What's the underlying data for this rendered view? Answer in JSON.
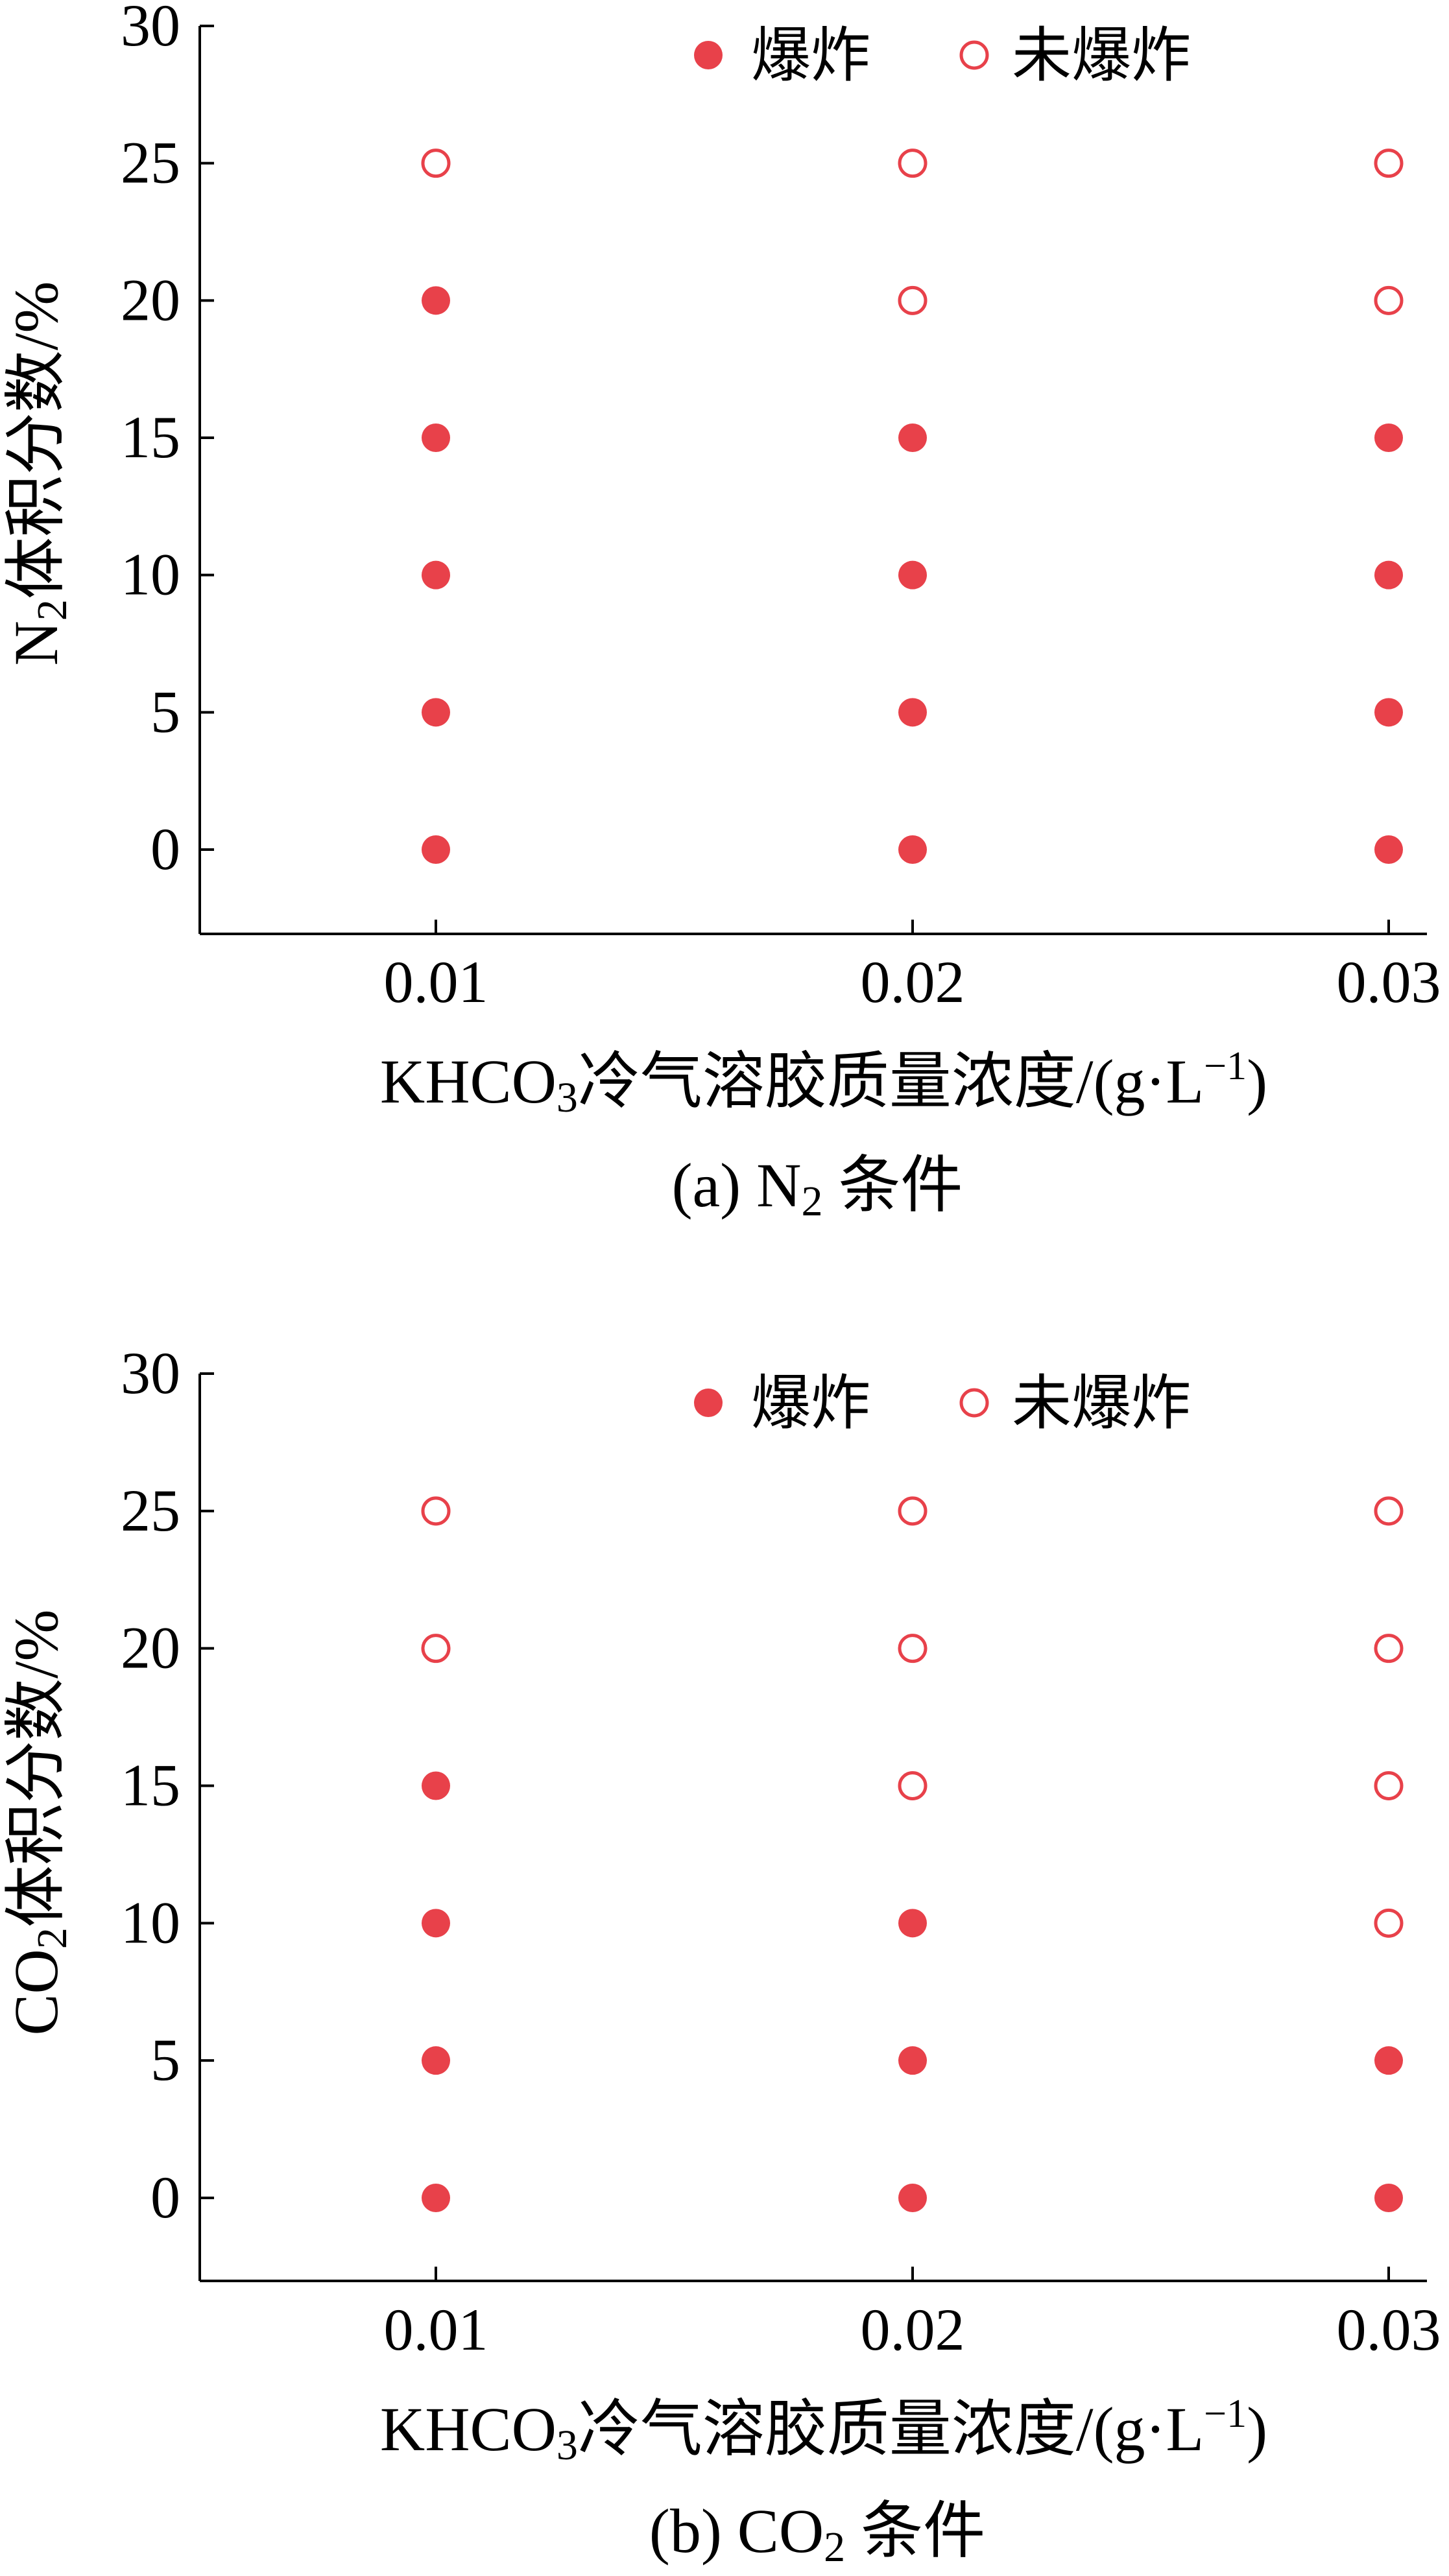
{
  "chart_data": [
    {
      "type": "scatter",
      "panel_label": "(a)",
      "caption": "N₂条件",
      "caption_text": "条件",
      "gas": "N",
      "gas_sub": "2",
      "xlabel": "KHCO₃冷气溶胶质量浓度/(g·L⁻¹)",
      "ylabel": "N₂体积分数/%",
      "ylabel_pre": "N",
      "ylabel_sub": "2",
      "ylabel_post": "体积分数/%",
      "x_categories": [
        "0.01",
        "0.02",
        "0.03"
      ],
      "yticks": [
        0,
        5,
        10,
        15,
        20,
        25,
        30
      ],
      "ylim": [
        -3,
        30
      ],
      "legend": {
        "exploded": "爆炸",
        "not_exploded": "未爆炸",
        "placement": "top-center"
      },
      "points": [
        {
          "x": "0.01",
          "y": 0,
          "status": "exploded"
        },
        {
          "x": "0.01",
          "y": 5,
          "status": "exploded"
        },
        {
          "x": "0.01",
          "y": 10,
          "status": "exploded"
        },
        {
          "x": "0.01",
          "y": 15,
          "status": "exploded"
        },
        {
          "x": "0.01",
          "y": 20,
          "status": "exploded"
        },
        {
          "x": "0.01",
          "y": 25,
          "status": "not_exploded"
        },
        {
          "x": "0.02",
          "y": 0,
          "status": "exploded"
        },
        {
          "x": "0.02",
          "y": 5,
          "status": "exploded"
        },
        {
          "x": "0.02",
          "y": 10,
          "status": "exploded"
        },
        {
          "x": "0.02",
          "y": 15,
          "status": "exploded"
        },
        {
          "x": "0.02",
          "y": 20,
          "status": "not_exploded"
        },
        {
          "x": "0.02",
          "y": 25,
          "status": "not_exploded"
        },
        {
          "x": "0.03",
          "y": 0,
          "status": "exploded"
        },
        {
          "x": "0.03",
          "y": 5,
          "status": "exploded"
        },
        {
          "x": "0.03",
          "y": 10,
          "status": "exploded"
        },
        {
          "x": "0.03",
          "y": 15,
          "status": "exploded"
        },
        {
          "x": "0.03",
          "y": 20,
          "status": "not_exploded"
        },
        {
          "x": "0.03",
          "y": 25,
          "status": "not_exploded"
        }
      ]
    },
    {
      "type": "scatter",
      "panel_label": "(b)",
      "caption": "CO₂条件",
      "caption_text": "条件",
      "gas": "CO",
      "gas_sub": "2",
      "xlabel": "KHCO₃冷气溶胶质量浓度/(g·L⁻¹)",
      "ylabel": "CO₂体积分数/%",
      "ylabel_pre": "CO",
      "ylabel_sub": "2",
      "ylabel_post": "体积分数/%",
      "x_categories": [
        "0.01",
        "0.02",
        "0.03"
      ],
      "yticks": [
        0,
        5,
        10,
        15,
        20,
        25,
        30
      ],
      "ylim": [
        -3,
        30
      ],
      "legend": {
        "exploded": "爆炸",
        "not_exploded": "未爆炸",
        "placement": "top-center"
      },
      "points": [
        {
          "x": "0.01",
          "y": 0,
          "status": "exploded"
        },
        {
          "x": "0.01",
          "y": 5,
          "status": "exploded"
        },
        {
          "x": "0.01",
          "y": 10,
          "status": "exploded"
        },
        {
          "x": "0.01",
          "y": 15,
          "status": "exploded"
        },
        {
          "x": "0.01",
          "y": 20,
          "status": "not_exploded"
        },
        {
          "x": "0.01",
          "y": 25,
          "status": "not_exploded"
        },
        {
          "x": "0.02",
          "y": 0,
          "status": "exploded"
        },
        {
          "x": "0.02",
          "y": 5,
          "status": "exploded"
        },
        {
          "x": "0.02",
          "y": 10,
          "status": "exploded"
        },
        {
          "x": "0.02",
          "y": 15,
          "status": "not_exploded"
        },
        {
          "x": "0.02",
          "y": 20,
          "status": "not_exploded"
        },
        {
          "x": "0.02",
          "y": 25,
          "status": "not_exploded"
        },
        {
          "x": "0.03",
          "y": 0,
          "status": "exploded"
        },
        {
          "x": "0.03",
          "y": 5,
          "status": "exploded"
        },
        {
          "x": "0.03",
          "y": 10,
          "status": "not_exploded"
        },
        {
          "x": "0.03",
          "y": 15,
          "status": "not_exploded"
        },
        {
          "x": "0.03",
          "y": 20,
          "status": "not_exploded"
        },
        {
          "x": "0.03",
          "y": 25,
          "status": "not_exploded"
        }
      ]
    }
  ],
  "xlabel_parts": {
    "pre": "KHCO",
    "sub": "3",
    "mid": "冷气溶胶质量浓度/(g·L",
    "sup": "−1",
    "post": ")"
  },
  "colors": {
    "marker": "#e8414a",
    "axis": "#000000",
    "background": "#ffffff"
  }
}
